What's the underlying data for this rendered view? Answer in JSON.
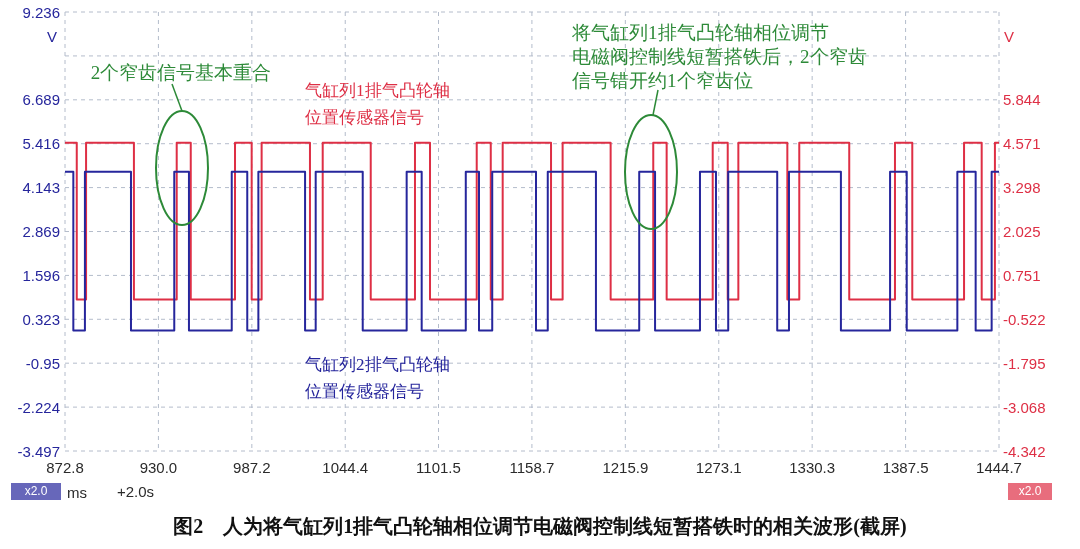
{
  "chart_data": {
    "type": "step",
    "xlabel": "ms",
    "ylabel": "V",
    "y2label": "V",
    "annotations": [
      "2个窄齿信号基本重合",
      "将气缸列1排气凸轮轴相位调节电磁阀控制线短暂搭铁后，2个窄齿信号错开约1个窄齿位",
      "x2.0",
      "+2.0s",
      "x2.0",
      "图2　人为将气缸列1排气凸轮轴相位调节电磁阀控制线短暂搭铁时的相关波形(截屏)"
    ],
    "xlim": [
      872.8,
      1444.7
    ],
    "xticks": [
      872.8,
      {
        "value": 930,
        "label": "930.0"
      },
      987.2,
      1044.4,
      1101.5,
      1158.7,
      1215.9,
      1273.1,
      1330.3,
      1387.5,
      1444.7
    ],
    "ylim": [
      -3.497,
      9.236
    ],
    "yticks": [
      -3.497,
      -2.224,
      -0.95,
      0.323,
      1.596,
      2.869,
      4.143,
      5.416,
      6.689,
      {
        "value": 7.962,
        "label": null
      },
      9.236
    ],
    "y2lim": [
      -4.342,
      8.391
    ],
    "y2ticks": [
      -4.342,
      -3.068,
      -1.795,
      -0.522,
      0.751,
      2.025,
      3.298,
      4.571,
      5.844
    ],
    "grid": true,
    "line_style": "solid",
    "series": [
      {
        "name": "气缸列1排气凸轮轴位置传感器信号",
        "color": "#de2f45",
        "axis": "y2",
        "x": [
          872.8,
          880.0,
          885.7,
          915.0,
          941.2,
          949.8,
          976.9,
          987.1,
          993.2,
          1022.8,
          1030.6,
          1060.0,
          1087.1,
          1096.3,
          1124.9,
          1133.5,
          1140.8,
          1170.4,
          1177.5,
          1206.9,
          1233.0,
          1241.2,
          1269.4,
          1278.6,
          1285.1,
          1315.1,
          1322.4,
          1353.0,
          1381.0,
          1391.6,
          1423.3,
          1434.1,
          1442.2,
          1444.7
        ],
        "values": [
          4.6,
          0.05,
          4.6,
          0.05,
          4.6,
          0.05,
          4.6,
          0.05,
          4.6,
          0.05,
          4.6,
          0.05,
          4.6,
          0.05,
          4.6,
          0.05,
          4.6,
          0.05,
          4.6,
          0.05,
          4.6,
          0.05,
          4.6,
          0.05,
          4.6,
          0.05,
          4.6,
          0.05,
          4.6,
          0.05,
          4.6,
          0.05,
          4.6,
          4.6
        ]
      },
      {
        "name": "气缸列2排气凸轮轴位置传感器信号",
        "color": "#26269c",
        "x": [
          872.8,
          877.9,
          885.0,
          913.2,
          939.7,
          948.7,
          974.9,
          984.4,
          991.2,
          1019.8,
          1026.3,
          1055.1,
          1082.0,
          1091.2,
          1118.2,
          1126.3,
          1134.4,
          1161.2,
          1168.4,
          1197.9,
          1224.4,
          1234.1,
          1261.6,
          1271.4,
          1278.9,
          1308.9,
          1316.1,
          1347.9,
          1378.0,
          1388.2,
          1419.2,
          1430.4,
          1440.2,
          1444.7
        ],
        "values": [
          4.6,
          0.0,
          4.6,
          0.0,
          4.6,
          0.0,
          4.6,
          0.0,
          4.6,
          0.0,
          4.6,
          0.0,
          4.6,
          0.0,
          4.6,
          0.0,
          4.6,
          0.0,
          4.6,
          0.0,
          4.6,
          0.0,
          4.6,
          0.0,
          4.6,
          0.0,
          4.6,
          0.0,
          4.6,
          0.0,
          4.6,
          0.0,
          4.6,
          4.6
        ]
      }
    ]
  }
}
